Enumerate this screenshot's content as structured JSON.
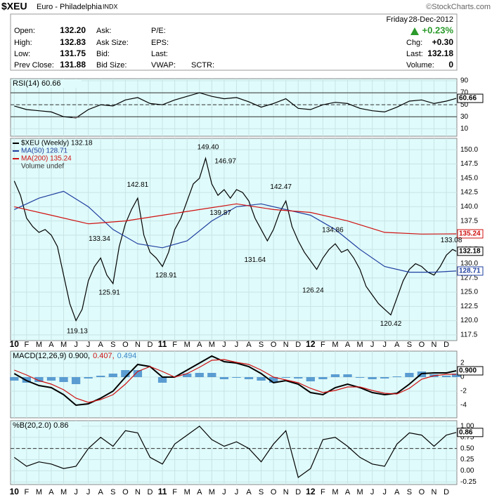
{
  "header": {
    "symbol": "$XEU",
    "name": "Euro - Philadelphia",
    "exchange": "INDX",
    "credit": "©StockCharts.com",
    "day": "Friday",
    "date": "28-Dec-2012",
    "change_pct": "+0.23%",
    "left": [
      {
        "label": "Open:",
        "value": "132.20"
      },
      {
        "label": "High:",
        "value": "132.83"
      },
      {
        "label": "Low:",
        "value": "131.75"
      },
      {
        "label": "Prev Close:",
        "value": "131.88"
      }
    ],
    "mid": [
      "Ask:",
      "Ask Size:",
      "Bid:",
      "Bid Size:"
    ],
    "mid2": [
      "P/E:",
      "EPS:",
      "Last:",
      "VWAP:"
    ],
    "extra": "SCTR:",
    "right": [
      {
        "label": "Chg:",
        "value": "+0.30"
      },
      {
        "label": "Last:",
        "value": "132.18"
      },
      {
        "label": "Volume:",
        "value": "0"
      }
    ]
  },
  "chart_data": [
    {
      "type": "line",
      "title": "RSI(14) 60.66",
      "xlim": [
        -0.3,
        35.85
      ],
      "ylim": [
        -2.5,
        93.5
      ],
      "yticks": [
        10,
        30,
        50,
        70,
        90
      ],
      "hlines": [
        30,
        70
      ],
      "dashed": [
        50
      ],
      "shade_below": 30,
      "x": [
        0,
        1,
        2,
        3,
        4,
        5,
        6,
        7,
        8,
        9,
        10,
        11,
        12,
        13,
        14,
        15,
        16,
        17,
        18,
        19,
        20,
        21,
        22,
        23,
        24,
        25,
        26,
        27,
        28,
        29,
        30,
        31,
        32,
        33,
        34,
        35,
        35.8
      ],
      "series": [
        {
          "color": "#000000",
          "values": [
            48,
            42,
            40,
            38,
            30,
            28,
            42,
            50,
            48,
            58,
            62,
            52,
            50,
            58,
            64,
            70,
            64,
            60,
            62,
            55,
            46,
            52,
            60,
            44,
            42,
            50,
            54,
            52,
            44,
            40,
            38,
            46,
            56,
            58,
            52,
            56,
            60.66
          ],
          "end_label": "60.66"
        }
      ]
    },
    {
      "type": "line",
      "xlim": [
        -0.3,
        35.85
      ],
      "ylim": [
        116.5,
        152
      ],
      "yticks": [
        {
          "value": 117.5,
          "label": "117.5"
        },
        {
          "value": 120,
          "label": "120.0"
        },
        {
          "value": 122.5,
          "label": "122.5"
        },
        {
          "value": 125,
          "label": "125.0"
        },
        {
          "value": 127.5,
          "label": "127.5"
        },
        {
          "value": 130,
          "label": "130.0"
        },
        {
          "value": 132.5,
          "label": "132.5"
        },
        {
          "value": 135,
          "label": "135.0"
        },
        {
          "value": 137.5,
          "label": "137.5"
        },
        {
          "value": 140,
          "label": "140.0"
        },
        {
          "value": 142.5,
          "label": "142.5"
        },
        {
          "value": 145,
          "label": "145.0"
        },
        {
          "value": 147.5,
          "label": "147.5"
        },
        {
          "value": 150,
          "label": "150.0"
        }
      ],
      "xticks": [
        {
          "value": 0,
          "label": "10"
        },
        {
          "value": 1,
          "label": "F"
        },
        {
          "value": 2,
          "label": "M"
        },
        {
          "value": 3,
          "label": "A"
        },
        {
          "value": 4,
          "label": "M"
        },
        {
          "value": 5,
          "label": "J"
        },
        {
          "value": 6,
          "label": "J"
        },
        {
          "value": 7,
          "label": "A"
        },
        {
          "value": 8,
          "label": "S"
        },
        {
          "value": 9,
          "label": "O"
        },
        {
          "value": 10,
          "label": "N"
        },
        {
          "value": 11,
          "label": "D"
        },
        {
          "value": 12,
          "label": "11"
        },
        {
          "value": 13,
          "label": "F"
        },
        {
          "value": 14,
          "label": "M"
        },
        {
          "value": 15,
          "label": "A"
        },
        {
          "value": 16,
          "label": "M"
        },
        {
          "value": 17,
          "label": "J"
        },
        {
          "value": 18,
          "label": "J"
        },
        {
          "value": 19,
          "label": "A"
        },
        {
          "value": 20,
          "label": "S"
        },
        {
          "value": 21,
          "label": "O"
        },
        {
          "value": 22,
          "label": "N"
        },
        {
          "value": 23,
          "label": "D"
        },
        {
          "value": 24,
          "label": "12"
        },
        {
          "value": 25,
          "label": "F"
        },
        {
          "value": 26,
          "label": "M"
        },
        {
          "value": 27,
          "label": "A"
        },
        {
          "value": 28,
          "label": "M"
        },
        {
          "value": 29,
          "label": "J"
        },
        {
          "value": 30,
          "label": "J"
        },
        {
          "value": 31,
          "label": "A"
        },
        {
          "value": 32,
          "label": "S"
        },
        {
          "value": 33,
          "label": "O"
        },
        {
          "value": 34,
          "label": "N"
        },
        {
          "value": 35,
          "label": "D"
        }
      ],
      "legend_extra": "Volume undef",
      "x": [
        0,
        0.5,
        1,
        1.5,
        2,
        2.5,
        3,
        3.5,
        4,
        4.5,
        5,
        5.5,
        6,
        6.5,
        7,
        7.5,
        8,
        8.5,
        9,
        9.5,
        10,
        10.5,
        11,
        11.5,
        12,
        12.5,
        13,
        13.5,
        14,
        14.5,
        15,
        15.5,
        16,
        16.5,
        17,
        17.5,
        18,
        18.5,
        19,
        19.5,
        20,
        20.5,
        21,
        21.5,
        22,
        22.5,
        23,
        23.5,
        24,
        24.5,
        25,
        25.5,
        26,
        26.5,
        27,
        27.5,
        28,
        28.5,
        29,
        29.5,
        30,
        30.5,
        31,
        31.5,
        32,
        32.5,
        33,
        33.5,
        34,
        34.5,
        35,
        35.5,
        35.8
      ],
      "series": [
        {
          "name": "$XEU (Weekly) 132.18",
          "color": "#000000",
          "end_label": "132.18",
          "values": [
            144.5,
            142,
            138,
            136.5,
            135.5,
            136,
            135,
            133,
            128,
            123,
            120,
            122,
            127,
            129.5,
            131,
            128,
            126.5,
            133,
            137,
            139.5,
            141.5,
            135,
            132,
            131,
            129.5,
            132,
            136,
            138,
            141,
            144,
            145,
            148.5,
            144,
            142,
            143,
            141.5,
            143,
            142.5,
            141,
            138,
            136,
            134,
            136,
            139,
            141,
            136.5,
            134,
            132,
            130.5,
            129,
            131,
            132.5,
            133.5,
            132,
            132.5,
            131,
            129,
            126,
            124.5,
            123,
            122,
            121,
            124,
            127,
            129,
            130,
            129.5,
            128.5,
            128,
            129.5,
            131.5,
            132.5,
            132.18
          ]
        },
        {
          "name": "MA(50) 128.71",
          "color": "#1f3fa0",
          "end_label": "128.71",
          "x": [
            0,
            2,
            4,
            6,
            8,
            10,
            12,
            14,
            16,
            18,
            20,
            22,
            24,
            26,
            28,
            30,
            32,
            34,
            35.8
          ],
          "values": [
            139.5,
            141.5,
            142.7,
            140,
            136,
            133.5,
            132.8,
            134,
            137.5,
            140,
            140.5,
            139.5,
            138.5,
            136,
            132.5,
            129.5,
            128.5,
            128.5,
            128.71
          ]
        },
        {
          "name": "MA(200) 135.24",
          "color": "#d01010",
          "end_label": "135.24",
          "x": [
            0,
            3,
            6,
            9,
            12,
            15,
            18,
            21,
            24,
            27,
            30,
            33,
            35.8
          ],
          "values": [
            140,
            138.5,
            137,
            137.5,
            138.5,
            139.5,
            140.5,
            139.5,
            139,
            137.5,
            135.5,
            135.2,
            135.24
          ]
        }
      ],
      "annotations": [
        {
          "x": 5.1,
          "value": 119.13,
          "label": "119.13",
          "pos": "below"
        },
        {
          "x": 6.9,
          "value": 133.34,
          "label": "133.34",
          "pos": "above"
        },
        {
          "x": 7.7,
          "value": 125.91,
          "label": "125.91",
          "pos": "below"
        },
        {
          "x": 10,
          "value": 142.81,
          "label": "142.81",
          "pos": "above"
        },
        {
          "x": 12.3,
          "value": 128.91,
          "label": "128.91",
          "pos": "below"
        },
        {
          "x": 15.7,
          "value": 149.4,
          "label": "149.40",
          "pos": "above"
        },
        {
          "x": 17.1,
          "value": 146.97,
          "label": "146.97",
          "pos": "above"
        },
        {
          "x": 16.7,
          "value": 139.87,
          "label": "139.87",
          "pos": "below"
        },
        {
          "x": 21.6,
          "value": 142.47,
          "label": "142.47",
          "pos": "above"
        },
        {
          "x": 19.5,
          "value": 131.64,
          "label": "131.64",
          "pos": "below"
        },
        {
          "x": 25.8,
          "value": 134.86,
          "label": "134.86",
          "pos": "above"
        },
        {
          "x": 24.2,
          "value": 126.24,
          "label": "126.24",
          "pos": "below"
        },
        {
          "x": 30.5,
          "value": 120.42,
          "label": "120.42",
          "pos": "below"
        },
        {
          "x": 35.4,
          "value": 133.08,
          "label": "133.08",
          "pos": "above"
        }
      ]
    },
    {
      "type": "line",
      "title_parts": [
        {
          "text": "MACD(12,26,9) 0.900,",
          "color": "#000000"
        },
        {
          "text": "0.407,",
          "color": "#d01010"
        },
        {
          "text": "0.494",
          "color": "#3a86c8"
        }
      ],
      "xlim": [
        -0.3,
        35.85
      ],
      "ylim": [
        -5.8,
        3.7
      ],
      "yticks": [
        -4,
        -2,
        0,
        2
      ],
      "x": [
        0,
        1,
        2,
        3,
        4,
        5,
        6,
        7,
        8,
        9,
        10,
        11,
        12,
        13,
        14,
        15,
        16,
        17,
        18,
        19,
        20,
        21,
        22,
        23,
        24,
        25,
        26,
        27,
        28,
        29,
        30,
        31,
        32,
        33,
        34,
        35,
        35.8
      ],
      "series": [
        {
          "style": "bar",
          "color": "#3a86c8",
          "values": [
            -0.5,
            -0.8,
            -0.7,
            -0.5,
            -0.7,
            -1,
            -0.2,
            0.2,
            0.5,
            1,
            1,
            0,
            -0.8,
            0,
            0.5,
            0.6,
            0.6,
            -0.3,
            -0.1,
            -0.3,
            -0.5,
            -0.8,
            -0.1,
            -0.2,
            -0.6,
            -0.3,
            0.4,
            0.4,
            -0.1,
            -0.3,
            -0.2,
            0.1,
            0.6,
            0.8,
            0.4,
            0.2,
            0.494
          ]
        },
        {
          "color": "#000000",
          "width": 2,
          "end_label": "0.900",
          "values": [
            0.5,
            -0.5,
            -1.2,
            -1.5,
            -2.5,
            -4,
            -3.8,
            -3,
            -2,
            0,
            1.8,
            1.5,
            0,
            0,
            1,
            2,
            3,
            2.2,
            2,
            1.5,
            0.5,
            -0.8,
            -0.5,
            -1,
            -2.2,
            -2.5,
            -1.5,
            -1,
            -1.5,
            -2.2,
            -2.5,
            -2.3,
            -1,
            0.5,
            0.6,
            0.6,
            0.9
          ]
        },
        {
          "color": "#d01010",
          "values": [
            1,
            0.3,
            -0.5,
            -1,
            -1.8,
            -3,
            -3.6,
            -3.2,
            -2.5,
            -1,
            0.8,
            1.5,
            0.8,
            0,
            0.5,
            1.4,
            2.4,
            2.5,
            2.1,
            1.8,
            1,
            0,
            -0.4,
            -0.8,
            -1.6,
            -2.2,
            -1.9,
            -1.4,
            -1.4,
            -1.9,
            -2.3,
            -2.4,
            -1.6,
            -0.3,
            0.2,
            0.4,
            0.407
          ]
        }
      ]
    },
    {
      "type": "line",
      "title": "%B(20,2.0) 0.86",
      "xlim": [
        -0.3,
        35.85
      ],
      "ylim": [
        -0.31,
        1.125
      ],
      "yticks": [
        {
          "value": -0.25,
          "label": "-0.25"
        },
        {
          "value": 0,
          "label": "0.00"
        },
        {
          "value": 0.25,
          "label": "0.25"
        },
        {
          "value": 0.5,
          "label": "0.50"
        },
        {
          "value": 0.75,
          "label": "0.75"
        },
        {
          "value": 1,
          "label": "1.00"
        }
      ],
      "dashed": [
        0.5
      ],
      "xticks": [
        {
          "value": 0,
          "label": "10"
        },
        {
          "value": 1,
          "label": "F"
        },
        {
          "value": 2,
          "label": "M"
        },
        {
          "value": 3,
          "label": "A"
        },
        {
          "value": 4,
          "label": "M"
        },
        {
          "value": 5,
          "label": "J"
        },
        {
          "value": 6,
          "label": "J"
        },
        {
          "value": 7,
          "label": "A"
        },
        {
          "value": 8,
          "label": "S"
        },
        {
          "value": 9,
          "label": "O"
        },
        {
          "value": 10,
          "label": "N"
        },
        {
          "value": 11,
          "label": "D"
        },
        {
          "value": 12,
          "label": "11"
        },
        {
          "value": 13,
          "label": "F"
        },
        {
          "value": 14,
          "label": "M"
        },
        {
          "value": 15,
          "label": "A"
        },
        {
          "value": 16,
          "label": "M"
        },
        {
          "value": 17,
          "label": "J"
        },
        {
          "value": 18,
          "label": "J"
        },
        {
          "value": 19,
          "label": "A"
        },
        {
          "value": 20,
          "label": "S"
        },
        {
          "value": 21,
          "label": "O"
        },
        {
          "value": 22,
          "label": "N"
        },
        {
          "value": 23,
          "label": "D"
        },
        {
          "value": 24,
          "label": "12"
        },
        {
          "value": 25,
          "label": "F"
        },
        {
          "value": 26,
          "label": "M"
        },
        {
          "value": 27,
          "label": "A"
        },
        {
          "value": 28,
          "label": "M"
        },
        {
          "value": 29,
          "label": "J"
        },
        {
          "value": 30,
          "label": "J"
        },
        {
          "value": 31,
          "label": "A"
        },
        {
          "value": 32,
          "label": "S"
        },
        {
          "value": 33,
          "label": "O"
        },
        {
          "value": 34,
          "label": "N"
        },
        {
          "value": 35,
          "label": "D"
        }
      ],
      "x": [
        0,
        1,
        2,
        3,
        4,
        5,
        6,
        7,
        8,
        9,
        10,
        11,
        12,
        13,
        14,
        15,
        16,
        17,
        18,
        19,
        20,
        21,
        22,
        23,
        24,
        25,
        26,
        27,
        28,
        29,
        30,
        31,
        32,
        33,
        34,
        35,
        35.8
      ],
      "series": [
        {
          "color": "#000000",
          "end_label": "0.86",
          "values": [
            0.3,
            0.1,
            0.2,
            0.15,
            0.05,
            0.1,
            0.5,
            0.75,
            0.55,
            0.9,
            0.85,
            0.3,
            0.15,
            0.6,
            0.8,
            1.0,
            0.7,
            0.55,
            0.65,
            0.5,
            0.2,
            0.6,
            0.9,
            -0.15,
            0.05,
            0.7,
            0.75,
            0.55,
            0.3,
            0.15,
            0.1,
            0.6,
            0.85,
            0.8,
            0.55,
            0.8,
            0.86
          ]
        }
      ]
    }
  ]
}
